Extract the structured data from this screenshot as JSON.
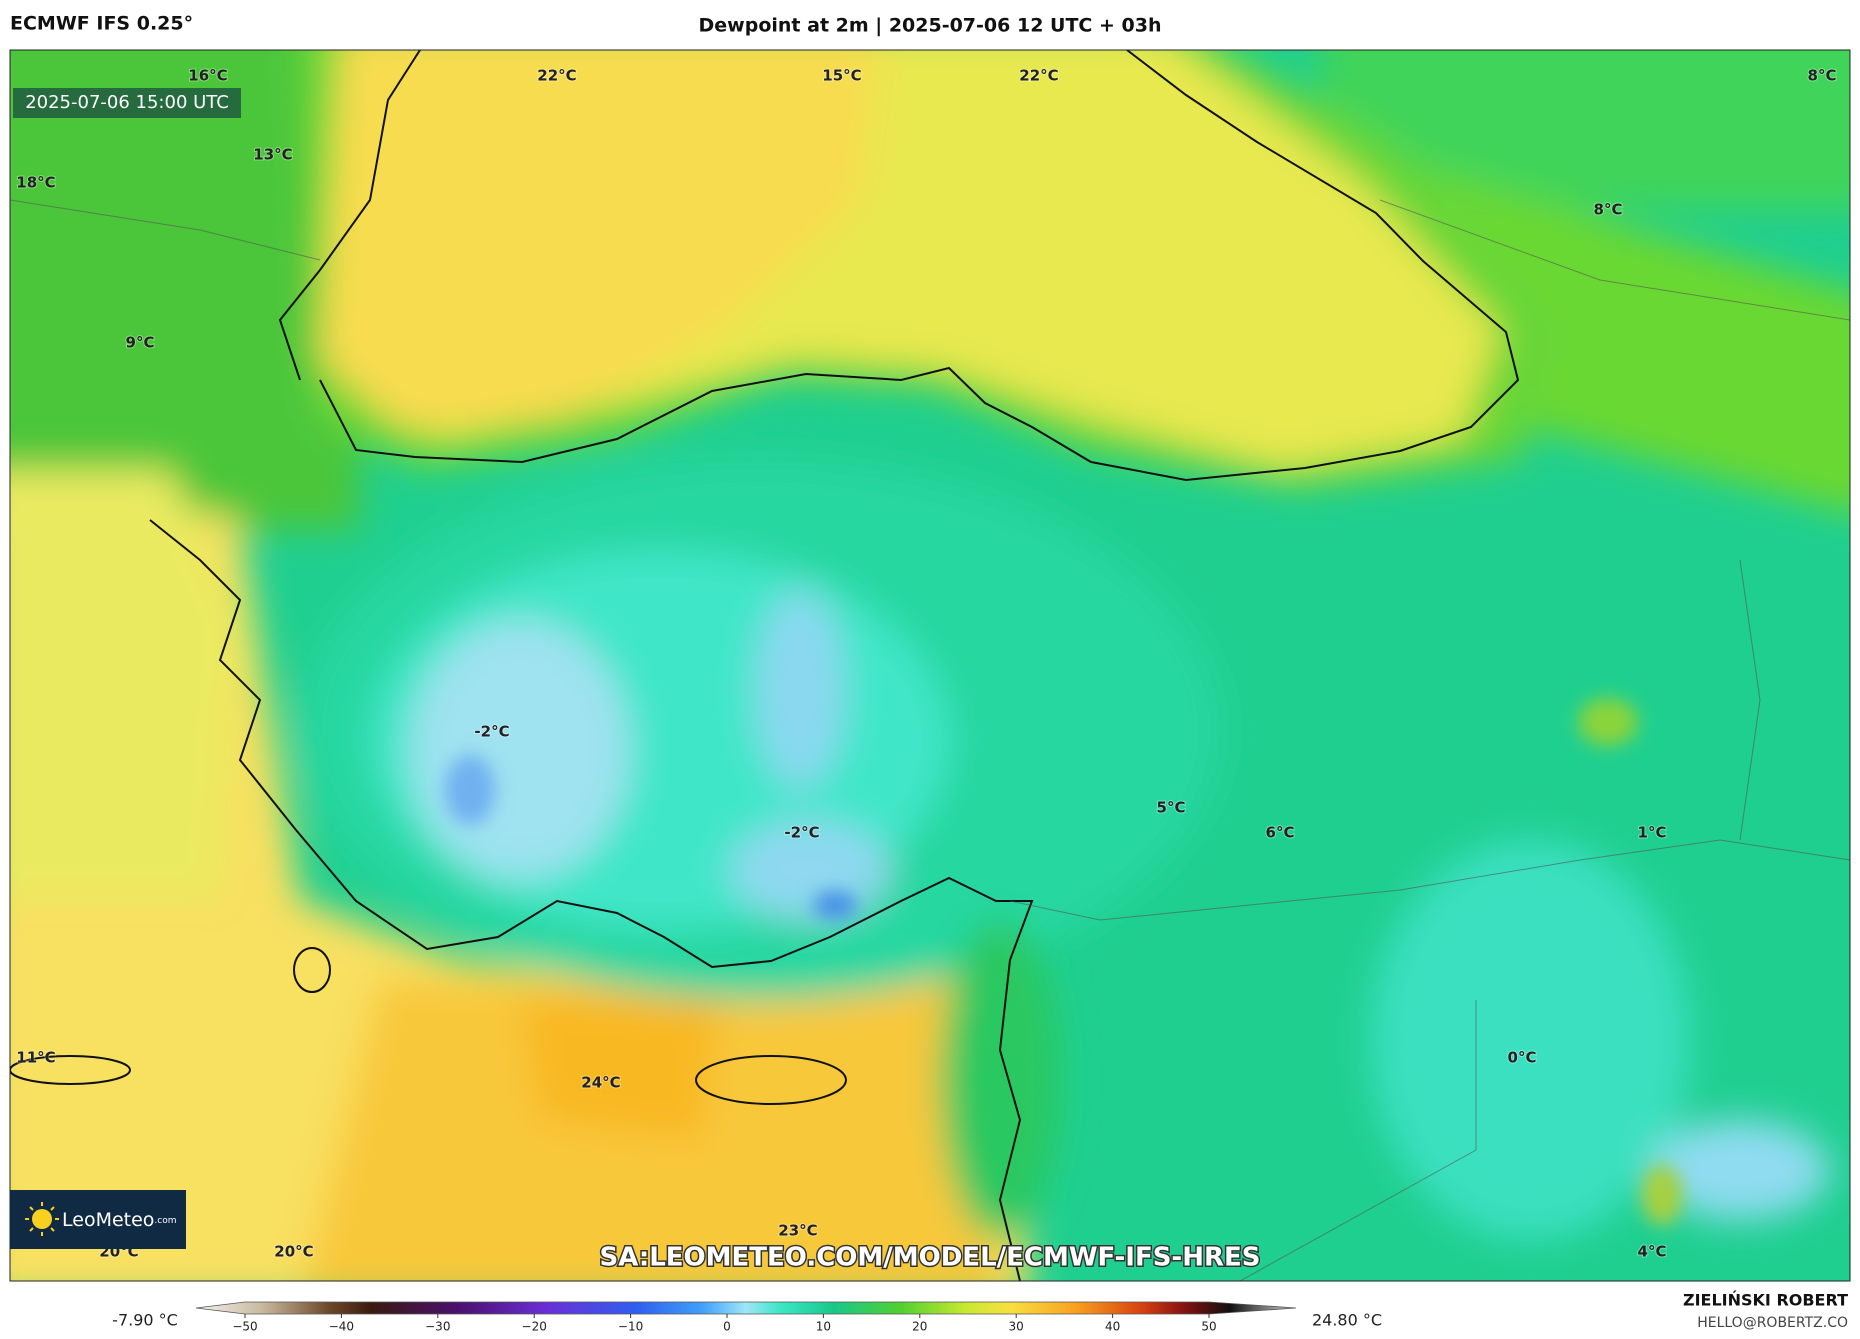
{
  "header": {
    "model": "ECMWF IFS 0.25°",
    "title": "Dewpoint at 2m | 2025-07-06 12 UTC + 03h"
  },
  "map": {
    "timestamp": "2025-07-06 15:00 UTC",
    "labels": [
      "22°C",
      "15°C",
      "22°C",
      "8°C",
      "16°C",
      "13°C",
      "18°C",
      "9°C",
      "8°C",
      "-2°C",
      "-2°C",
      "5°C",
      "6°C",
      "1°C",
      "0°C",
      "11°C",
      "24°C",
      "23°C",
      "20°C",
      "20°C",
      "4°C"
    ],
    "watermark": "SA:LEOMETEO.COM/MODEL/ECMWF-IFS-HRES"
  },
  "logo": {
    "name": "LeoMeteo",
    "suffix": ".com"
  },
  "colorbar": {
    "min_label": "-7.90 °C",
    "max_label": "24.80 °C",
    "ticks": [
      "−50",
      "−40",
      "−30",
      "−20",
      "−10",
      "0",
      "10",
      "20",
      "30",
      "40",
      "50"
    ]
  },
  "footer": {
    "author": "ZIELIŃSKI ROBERT",
    "email": "HELLO@ROBERTZ.CO"
  }
}
